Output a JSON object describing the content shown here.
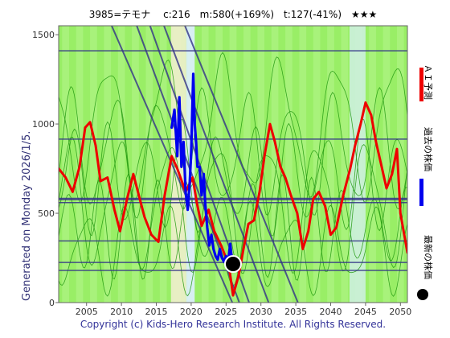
{
  "header": {
    "title": "3985=テモナ　 c:216　m:580(+169%)　t:127(-41%)　★★★"
  },
  "side": {
    "generated": "Generated on Monday 2026/1/5."
  },
  "footer": {
    "copyright": "Copyright (c) Kids-Hero Research Institute. All Rights Reserved."
  },
  "legend": [
    {
      "label": "ＡＩ予測",
      "color": "#ee0000"
    },
    {
      "label": "過去の株価",
      "color": "#0000ee"
    },
    {
      "label": "最新の株価",
      "color": "#000000"
    }
  ],
  "colors": {
    "background_green": "#99ee66",
    "stripe_green": "#b4f58c",
    "hline": "#333388",
    "diag": "#333388",
    "ai": "#ee0000",
    "past": "#0000ee",
    "latest": "#000000",
    "thin_green": "#229911"
  },
  "chart_data": {
    "type": "line",
    "xlim": [
      2001,
      2051
    ],
    "ylim": [
      0,
      1550
    ],
    "xticks": [
      "2005",
      "2010",
      "2015",
      "2020",
      "2025",
      "2030",
      "2035",
      "2040",
      "2045",
      "2050"
    ],
    "yticks": [
      "0",
      "500",
      "1000",
      "1500"
    ],
    "hlines": [
      {
        "y": 1410,
        "width": 1.5
      },
      {
        "y": 915,
        "width": 1.5
      },
      {
        "y": 580,
        "width": 3
      },
      {
        "y": 560,
        "width": 1.5
      },
      {
        "y": 345,
        "width": 1.5
      },
      {
        "y": 225,
        "width": 1.5
      },
      {
        "y": 180,
        "width": 1.5
      }
    ],
    "diagonals": [
      {
        "x": [
          2008.6,
          2025.9
        ],
        "y": [
          1550,
          0
        ]
      },
      {
        "x": [
          2012.2,
          2026.9
        ],
        "y": [
          1550,
          0
        ]
      },
      {
        "x": [
          2014.1,
          2028.3
        ],
        "y": [
          1550,
          0
        ]
      },
      {
        "x": [
          2016.1,
          2031.1
        ],
        "y": [
          1550,
          0
        ]
      },
      {
        "x": [
          2019.1,
          2035.3
        ],
        "y": [
          1550,
          0
        ]
      }
    ],
    "shaded_bands": [
      {
        "x": [
          2017.1,
          2019.3
        ],
        "color": "#eeeecc"
      },
      {
        "x": [
          2019.3,
          2020.5
        ],
        "color": "#ddeeff"
      },
      {
        "x": [
          2042.7,
          2045.0
        ],
        "color": "#ccf0dd"
      }
    ],
    "series": [
      {
        "name": "ＡＩ予測",
        "color": "#ee0000",
        "x": [
          2001,
          2002,
          2003,
          2004,
          2004.8,
          2005.5,
          2006.3,
          2007,
          2008,
          2009,
          2009.8,
          2010.8,
          2011.7,
          2012.5,
          2013.3,
          2014.3,
          2015.3,
          2016.2,
          2017.2,
          2018,
          2019.2,
          2020.2,
          2020.8,
          2021.5,
          2022.5,
          2023.3,
          2024.3,
          2025,
          2025.5,
          2026,
          2026.8,
          2027.5,
          2028.2,
          2029,
          2029.8,
          2030.5,
          2031.3,
          2032,
          2032.8,
          2033.5,
          2034.3,
          2035.2,
          2036,
          2036.8,
          2037.5,
          2038.3,
          2039.2,
          2040,
          2040.8,
          2041.8,
          2042.8,
          2043.5,
          2044.3,
          2045,
          2045.8,
          2046.5,
          2047.2,
          2048,
          2048.8,
          2049.5,
          2050,
          2051
        ],
        "values": [
          750,
          700,
          620,
          760,
          980,
          1010,
          880,
          680,
          700,
          520,
          400,
          580,
          720,
          600,
          480,
          380,
          340,
          600,
          820,
          750,
          620,
          700,
          560,
          430,
          520,
          400,
          320,
          250,
          180,
          40,
          150,
          300,
          440,
          460,
          620,
          820,
          1000,
          900,
          760,
          700,
          600,
          500,
          300,
          400,
          580,
          620,
          540,
          380,
          420,
          600,
          750,
          880,
          1000,
          1120,
          1050,
          900,
          780,
          640,
          720,
          860,
          500,
          280
        ]
      },
      {
        "name": "過去の株価",
        "color": "#0000ee",
        "x": [
          2017.2,
          2017.6,
          2018.0,
          2018.3,
          2018.6,
          2018.9,
          2019.2,
          2019.5,
          2019.8,
          2020.0,
          2020.3,
          2020.5,
          2020.7,
          2020.9,
          2021.2,
          2021.5,
          2021.8,
          2022.0,
          2022.3,
          2022.6,
          2022.9,
          2023.2,
          2023.5,
          2023.8,
          2024.1,
          2024.4,
          2024.7,
          2025.0,
          2025.3,
          2025.6,
          2025.9
        ],
        "values": [
          980,
          1080,
          820,
          1150,
          760,
          900,
          620,
          520,
          680,
          840,
          1280,
          1000,
          900,
          760,
          760,
          600,
          720,
          560,
          420,
          320,
          380,
          300,
          260,
          240,
          300,
          250,
          230,
          260,
          230,
          330,
          216
        ]
      }
    ],
    "latest": {
      "x": 2026.0,
      "y": 216
    }
  }
}
